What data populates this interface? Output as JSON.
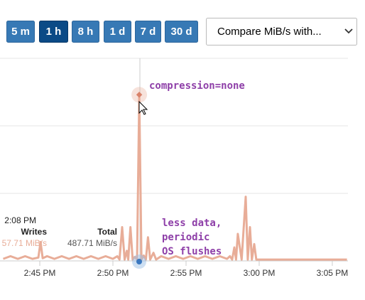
{
  "toolbar": {
    "buttons": [
      "5 m",
      "1 h",
      "8 h",
      "1 d",
      "7 d",
      "30 d"
    ],
    "selected": 1,
    "select": "Compare MiB/s with..."
  },
  "tooltip": {
    "time": "2:08 PM",
    "headers": [
      "Writes",
      "Total"
    ],
    "values": [
      "57.71 MiB/s",
      "487.71 MiB/s"
    ]
  },
  "chart_data": {
    "type": "line",
    "x": [
      42.5,
      43,
      43.5,
      44,
      44.5,
      44.9,
      45.05,
      45.2,
      45.5,
      46,
      46.5,
      47,
      47.5,
      48,
      48.5,
      49,
      49.5,
      50,
      50.3,
      50.45,
      50.63,
      50.8,
      50.95,
      51.05,
      51.2,
      51.35,
      51.5,
      51.65,
      51.8,
      51.95,
      52.1,
      52.25,
      52.4,
      52.55,
      52.77,
      52.95,
      53.3,
      53.8,
      54.3,
      54.8,
      55.3,
      55.8,
      56.3,
      56.8,
      57.3,
      57.8,
      58,
      58.15,
      58.3,
      58.42,
      58.54,
      58.8,
      59.08,
      59.22,
      59.37,
      59.5,
      59.66,
      59.8,
      60.5,
      61.5,
      62.5,
      63.5,
      64.5,
      65.5,
      66
    ],
    "series": [
      {
        "name": "Total",
        "color": "#e8ad98",
        "values": [
          0.03,
          0.07,
          0.03,
          0.07,
          0.03,
          0.05,
          0.28,
          0.04,
          0.07,
          0.03,
          0.07,
          0.03,
          0.07,
          0.03,
          0.07,
          0.03,
          0.07,
          0.03,
          0.07,
          0.02,
          0.5,
          0.02,
          0.15,
          0.02,
          0.5,
          0.02,
          0.06,
          0.02,
          2.46,
          0.02,
          0.08,
          0.02,
          0.35,
          0.02,
          0.12,
          0.02,
          0.07,
          0.03,
          0.07,
          0.03,
          0.07,
          0.03,
          0.07,
          0.03,
          0.07,
          0.03,
          0.07,
          0.02,
          0.2,
          0.02,
          0.4,
          0.02,
          0.95,
          0.02,
          0.5,
          0.02,
          0.25,
          0.02,
          0.02,
          0.02,
          0.02,
          0.02,
          0.02,
          0.02,
          0.02
        ]
      }
    ],
    "xlim": [
      42.28,
      66.07
    ],
    "ylim": [
      0,
      3
    ],
    "xticks": [
      {
        "value": 45,
        "label": "2:45 PM"
      },
      {
        "value": 50,
        "label": "2:50 PM"
      },
      {
        "value": 55,
        "label": "2:55 PM"
      },
      {
        "value": 60,
        "label": "3:00 PM"
      },
      {
        "value": 65,
        "label": "3:05 PM"
      }
    ],
    "highlight": 28,
    "annotations": [
      "compression=none",
      "less data,",
      "periodic",
      "OS flushes"
    ]
  }
}
